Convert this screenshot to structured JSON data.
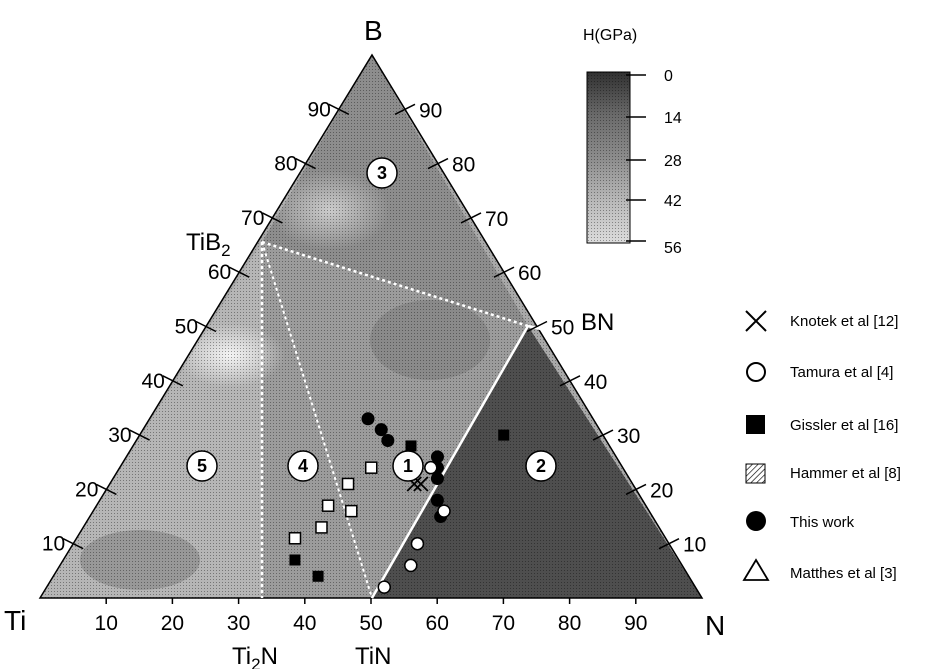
{
  "chart_data": {
    "type": "scatter",
    "diagram": "ternary",
    "corners": {
      "top": "B",
      "left": "Ti",
      "right": "N"
    },
    "compound_labels": {
      "tib2": "TiB",
      "tib2_sub": "2",
      "bn": "BN",
      "ti2n_a": "Ti",
      "ti2n_sub": "2",
      "ti2n_b": "N",
      "tin": "TiN"
    },
    "ticks": {
      "bottom": [
        "10",
        "20",
        "30",
        "40",
        "50",
        "60",
        "70",
        "80",
        "90"
      ],
      "left": [
        "10",
        "20",
        "30",
        "40",
        "50",
        "60",
        "70",
        "80",
        "90"
      ],
      "right": [
        "90",
        "80",
        "70",
        "60",
        "50",
        "40",
        "30",
        "20",
        "10"
      ]
    },
    "colorbar": {
      "title": "H(GPa)",
      "ticks": [
        "0",
        "14",
        "28",
        "42",
        "56"
      ]
    },
    "regions": [
      "1",
      "2",
      "3",
      "4",
      "5"
    ],
    "legend": [
      {
        "marker": "x",
        "label": "Knotek et al [12]"
      },
      {
        "marker": "circle-open",
        "label": "Tamura et al [4]"
      },
      {
        "marker": "square-filled",
        "label": "Gissler et al [16]"
      },
      {
        "marker": "square-hatched",
        "label": "Hammer et al [8]"
      },
      {
        "marker": "circle-filled",
        "label": "This work"
      },
      {
        "marker": "triangle-open",
        "label": "Matthes et al [3]"
      }
    ],
    "series": [
      {
        "name": "This work",
        "marker": "circle-filled",
        "points": [
          [
            33,
            33
          ],
          [
            36,
            31
          ],
          [
            38,
            29
          ],
          [
            47,
            26
          ],
          [
            48,
            24
          ],
          [
            49,
            22
          ],
          [
            51,
            18
          ],
          [
            53,
            15
          ]
        ]
      },
      {
        "name": "Tamura et al [4]",
        "marker": "circle-open",
        "points": [
          [
            47,
            24
          ],
          [
            53,
            16
          ],
          [
            52,
            10
          ],
          [
            53,
            6
          ],
          [
            51,
            2
          ]
        ]
      },
      {
        "name": "Gissler et al [16]",
        "marker": "square-filled",
        "points": [
          [
            42,
            28
          ],
          [
            55,
            30
          ],
          [
            35,
            17
          ],
          [
            35,
            7
          ],
          [
            40,
            4
          ]
        ]
      },
      {
        "name": "Hammer et al [8]",
        "marker": "square-hatched",
        "points": [
          [
            38,
            24
          ],
          [
            36,
            21
          ],
          [
            35,
            17
          ],
          [
            39,
            16
          ],
          [
            36,
            13
          ],
          [
            33,
            11
          ]
        ]
      },
      {
        "name": "Knotek et al [12]",
        "marker": "x",
        "points": [
          [
            44,
            24
          ],
          [
            47,
            21
          ],
          [
            46,
            21
          ]
        ]
      }
    ]
  }
}
